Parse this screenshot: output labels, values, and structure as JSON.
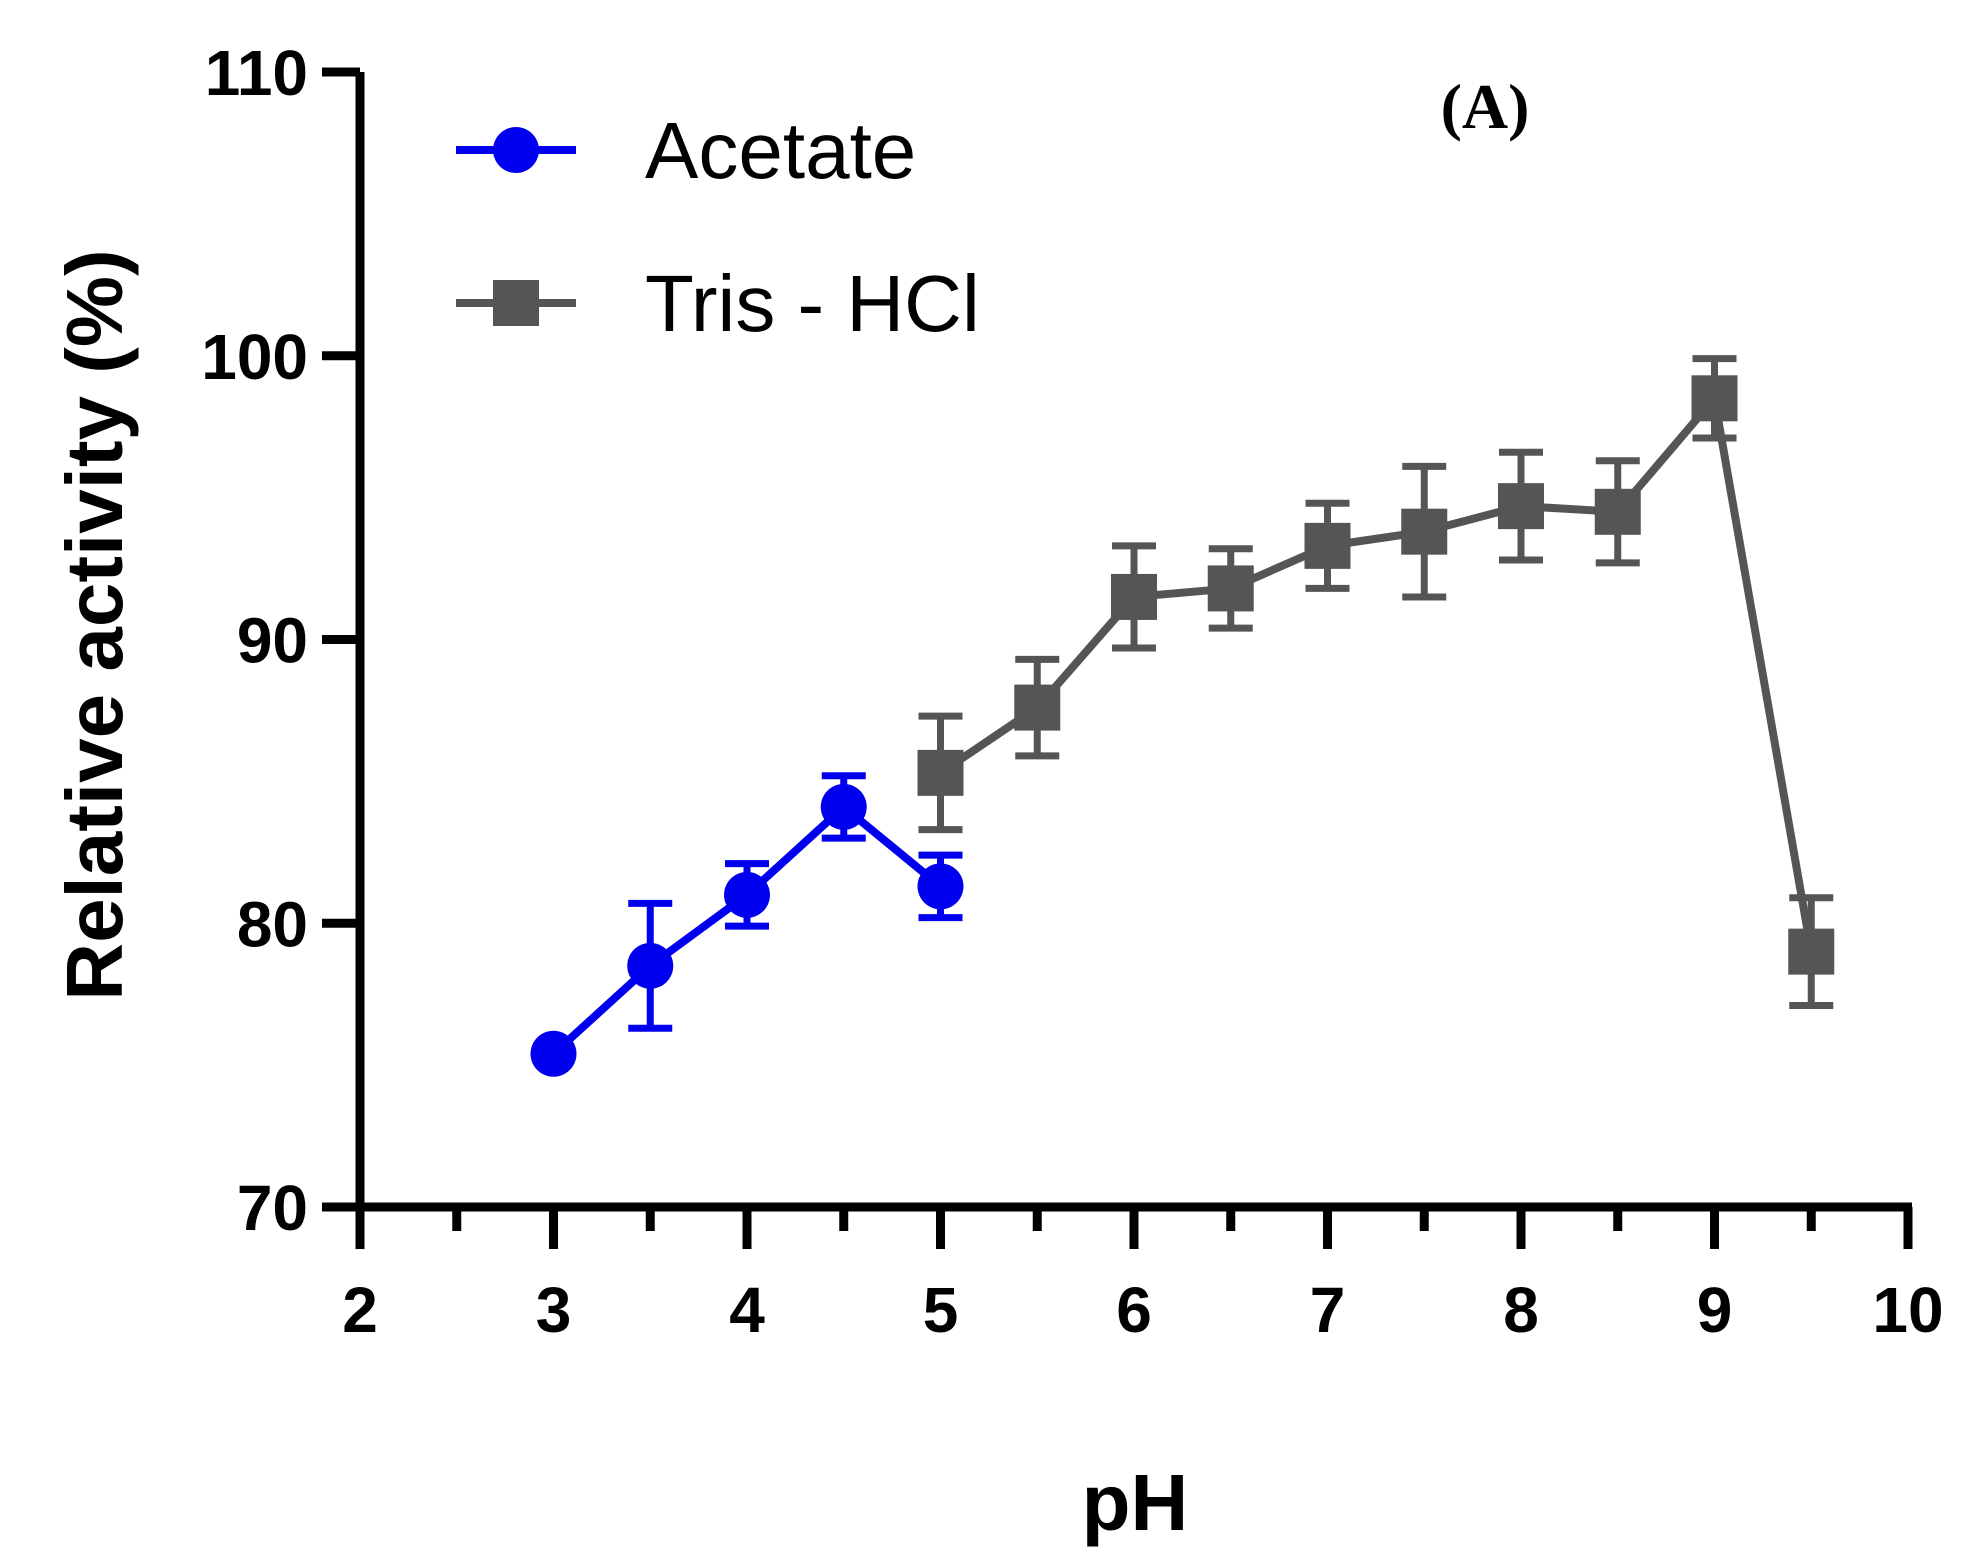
{
  "chart_data": {
    "type": "line",
    "title": "",
    "annotation": "(A)",
    "xlabel": "pH",
    "ylabel": "Relative activity (%)",
    "xlim": [
      2,
      10
    ],
    "ylim": [
      70,
      110
    ],
    "x_major_ticks": [
      2,
      3,
      4,
      5,
      6,
      7,
      8,
      9,
      10
    ],
    "x_minor_ticks": [
      2.5,
      3.5,
      4.5,
      5.5,
      6.5,
      7.5,
      8.5,
      9.5
    ],
    "y_ticks": [
      70,
      80,
      90,
      100,
      110
    ],
    "x_tick_labels": [
      "2",
      "3",
      "4",
      "5",
      "6",
      "7",
      "8",
      "9",
      "10"
    ],
    "y_tick_labels": [
      "70",
      "80",
      "90",
      "100",
      "110"
    ],
    "legend_position": "top-left",
    "series": [
      {
        "name": "Acetate",
        "color": "#0000ee",
        "marker": "circle",
        "x": [
          3,
          3.5,
          4,
          4.5,
          5
        ],
        "y": [
          75.4,
          78.5,
          81.0,
          84.1,
          81.3
        ],
        "err": [
          0.4,
          2.2,
          1.1,
          1.1,
          1.1
        ]
      },
      {
        "name": "Tris - HCl",
        "color": "#555555",
        "marker": "square",
        "x": [
          5,
          5.5,
          6,
          6.5,
          7,
          7.5,
          8,
          8.5,
          9,
          9.5
        ],
        "y": [
          85.3,
          87.6,
          91.5,
          91.8,
          93.3,
          93.8,
          94.7,
          94.5,
          98.5,
          79.0
        ],
        "err": [
          2.0,
          1.7,
          1.8,
          1.4,
          1.5,
          2.3,
          1.9,
          1.8,
          1.4,
          1.9
        ]
      }
    ]
  }
}
